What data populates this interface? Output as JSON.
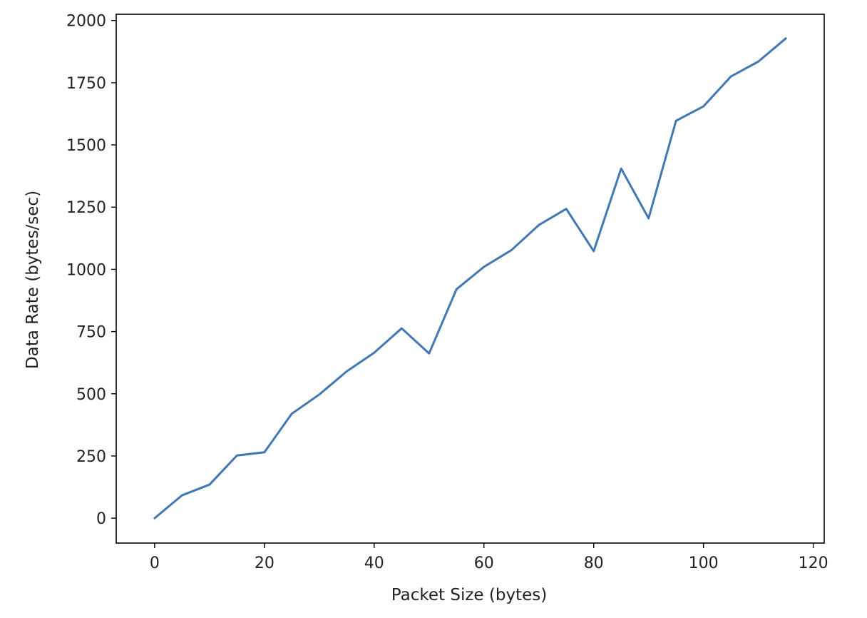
{
  "chart_data": {
    "type": "line",
    "title": "",
    "xlabel": "Packet Size (bytes)",
    "ylabel": "Data Rate (bytes/sec)",
    "xlim": [
      -7.0,
      122.0
    ],
    "ylim": [
      -100,
      2025
    ],
    "xticks": [
      0,
      20,
      40,
      60,
      80,
      100,
      120
    ],
    "yticks": [
      0,
      250,
      500,
      750,
      1000,
      1250,
      1500,
      1750,
      2000
    ],
    "xtick_labels": [
      "0",
      "20",
      "40",
      "60",
      "80",
      100,
      "120"
    ],
    "ytick_labels": [
      "0",
      "250",
      "500",
      "750",
      "1000",
      "1250",
      "1500",
      "1750",
      "2000"
    ],
    "grid": false,
    "legend": false,
    "series": [
      {
        "color": "#4178b4",
        "x": [
          0,
          5,
          10,
          15,
          20,
          25,
          30,
          35,
          40,
          45,
          50,
          55,
          60,
          65,
          70,
          75,
          80,
          85,
          90,
          95,
          100,
          105,
          110,
          115
        ],
        "y": [
          0,
          92,
          135,
          252,
          265,
          420,
          497,
          590,
          665,
          763,
          662,
          920,
          1010,
          1077,
          1178,
          1243,
          1073,
          1405,
          1205,
          1597,
          1655,
          1775,
          1835,
          1928
        ]
      }
    ]
  }
}
